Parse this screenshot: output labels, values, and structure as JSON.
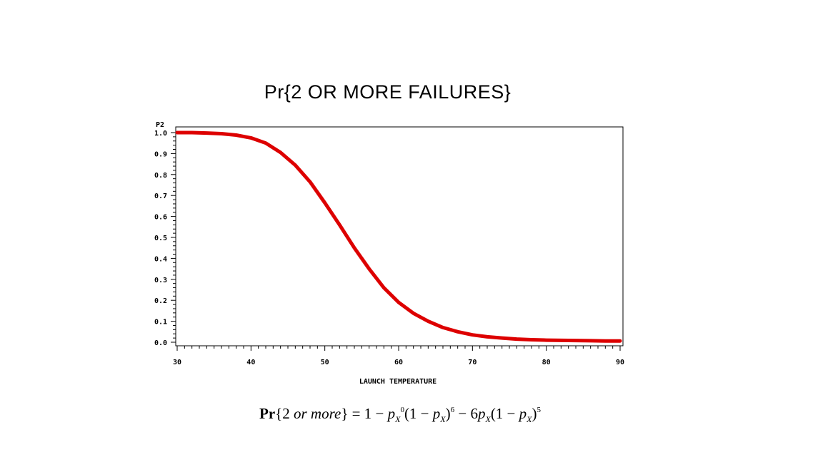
{
  "chart_data": {
    "type": "line",
    "title": "Pr{2 OR MORE FAILURES}",
    "xlabel": "LAUNCH TEMPERATURE",
    "ylabel": "P2",
    "xlim": [
      30,
      90
    ],
    "ylim": [
      0,
      1
    ],
    "xticks": [
      "30",
      "40",
      "50",
      "60",
      "70",
      "80",
      "90"
    ],
    "yticks": [
      "0.0",
      "0.1",
      "0.2",
      "0.3",
      "0.4",
      "0.5",
      "0.6",
      "0.7",
      "0.8",
      "0.9",
      "1.0"
    ],
    "series": [
      {
        "color": "#dd0000",
        "x": [
          30,
          32,
          34,
          36,
          38,
          40,
          42,
          44,
          46,
          48,
          50,
          52,
          54,
          56,
          58,
          60,
          62,
          64,
          66,
          68,
          70,
          72,
          74,
          76,
          78,
          80,
          82,
          84,
          86,
          88,
          90
        ],
        "y": [
          1.0,
          1.0,
          0.998,
          0.995,
          0.988,
          0.975,
          0.95,
          0.905,
          0.845,
          0.765,
          0.665,
          0.56,
          0.45,
          0.35,
          0.26,
          0.19,
          0.138,
          0.1,
          0.07,
          0.05,
          0.035,
          0.026,
          0.02,
          0.015,
          0.012,
          0.01,
          0.009,
          0.008,
          0.007,
          0.006,
          0.006
        ]
      }
    ],
    "grid": false
  },
  "formula": {
    "pr": "Pr",
    "open": "{2 ",
    "or_more": "or more",
    "close": "} = 1 − ",
    "p": "p",
    "sub_x": "X",
    "exp0": "0",
    "part2": "(1 − ",
    "exp6": "6",
    "part3": " − 6",
    "part4": "(1 − ",
    "exp5": "5"
  }
}
